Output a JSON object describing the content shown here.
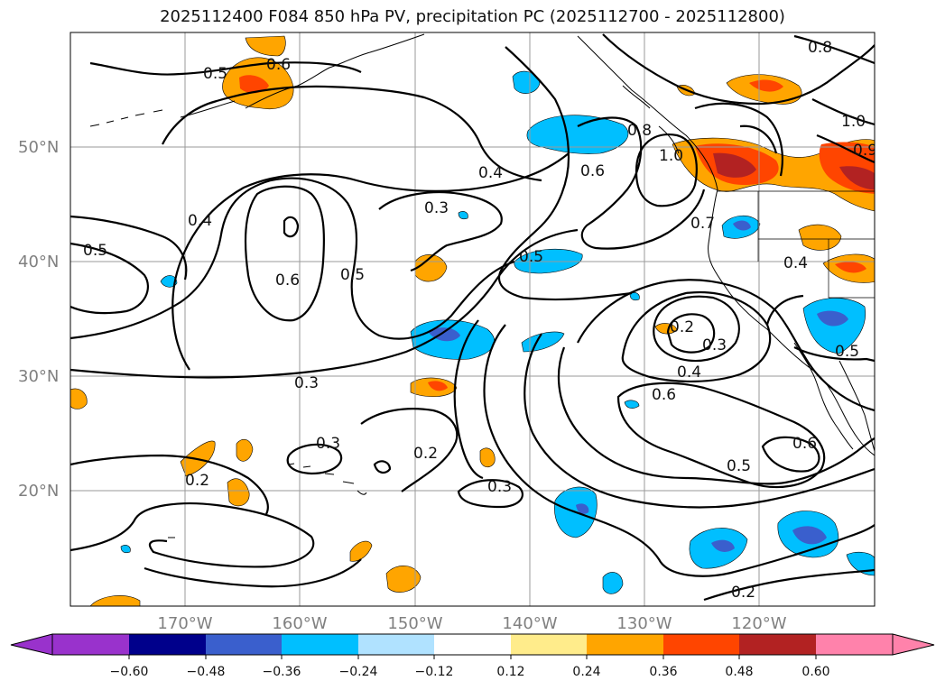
{
  "title": "2025112400 F084 850 hPa PV, precipitation PC (2025112700 - 2025112800)",
  "lat_labels": [
    "50°N",
    "40°N",
    "30°N",
    "20°N"
  ],
  "lon_labels": [
    "170°W",
    "160°W",
    "150°W",
    "140°W",
    "130°W",
    "120°W"
  ],
  "colorbar": {
    "tick_labels": [
      "−0.60",
      "−0.48",
      "−0.36",
      "−0.24",
      "−0.12",
      "0.12",
      "0.24",
      "0.36",
      "0.48",
      "0.60"
    ],
    "colors": [
      "#9932CC",
      "#00008B",
      "#3A5FCD",
      "#00BFFF",
      "#B0E2FF",
      "#FFFFFF",
      "#FFEC8B",
      "#FFA500",
      "#FF4500",
      "#B22222",
      "#FF82AB"
    ]
  },
  "contour_labels": [
    "0.6",
    "0.5",
    "0.8",
    "1.0",
    "0.8",
    "0.6",
    "1.0",
    "0.4",
    "0.3",
    "0.4",
    "0.5",
    "0.6",
    "0.5",
    "0.5",
    "0.7",
    "0.4",
    "0.2",
    "0.3",
    "0.4",
    "0.6",
    "0.5",
    "0.3",
    "0.3",
    "0.2",
    "0.2",
    "0.3",
    "0.6",
    "0.5",
    "0.2",
    "0.9"
  ],
  "colors": {
    "coast": "#000000",
    "grid": "#9a9a9a",
    "contour": "#000000",
    "pos_orange": "#FFA500",
    "pos_red": "#FF4500",
    "pos_dark": "#B22222",
    "neg_cyan": "#00BFFF",
    "neg_blue": "#3A5FCD"
  }
}
